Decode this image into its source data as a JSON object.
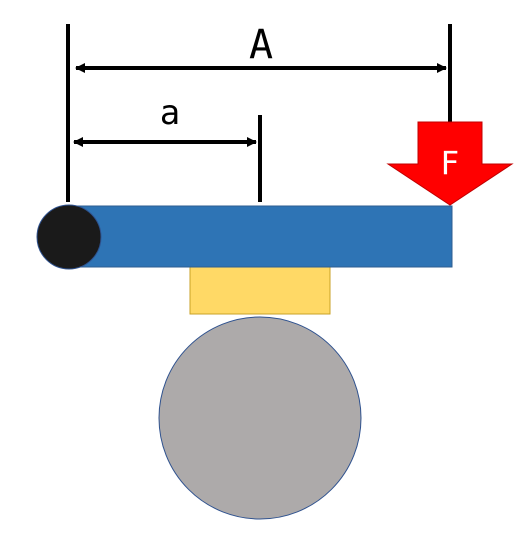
{
  "labels": {
    "dimension_long": "A",
    "dimension_short": "a",
    "force": "F"
  },
  "colors": {
    "lever": "#2E74B5",
    "pivot": "#1A1A1A",
    "support_block": "#FFD966",
    "wheel": "#ADAAAA",
    "force_arrow": "#FF0000",
    "force_arrow_outline": "#C00000",
    "lines": "#000000",
    "background": "#FFFFFF"
  },
  "icons": {
    "force_arrow": "down-arrow-icon",
    "pivot": "pivot-circle-icon"
  }
}
